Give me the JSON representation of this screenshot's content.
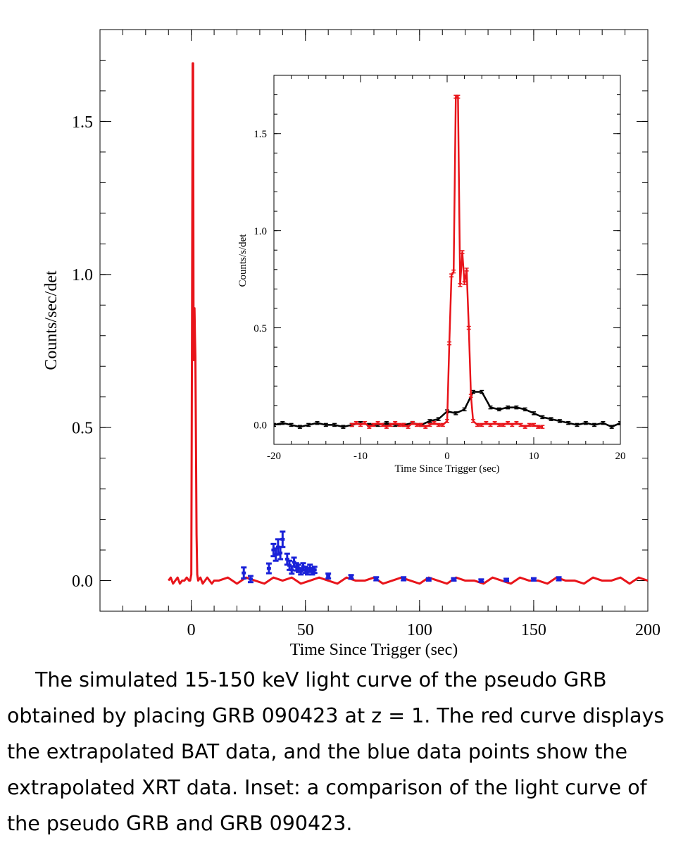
{
  "caption": "The simulated 15-150 keV light curve of the pseudo GRB obtained by placing GRB 090423 at z = 1. The red curve displays the extrapolated BAT data, and the blue data points show the extrapolated XRT data. Inset: a comparison of the light curve of the pseudo GRB and GRB 090423.",
  "colors": {
    "bat": "#e8141a",
    "xrt": "#1a22d8",
    "grb": "#000000"
  },
  "chart_data": [
    {
      "type": "line",
      "xlabel": "Time Since Trigger (sec)",
      "ylabel": "Counts/sec/det",
      "xlim": [
        -40,
        200
      ],
      "ylim": [
        -0.1,
        1.8
      ],
      "xticks": [
        0,
        50,
        100,
        150,
        200
      ],
      "xtick_labels": [
        "0",
        "50",
        "100",
        "150",
        "200"
      ],
      "yticks": [
        0.0,
        0.5,
        1.0,
        1.5
      ],
      "ytick_labels": [
        "0.0",
        "0.5",
        "1.0",
        "1.5"
      ],
      "series": [
        {
          "color": "#e8141a",
          "x": [
            -10,
            -9,
            -8,
            -7,
            -6,
            -5,
            -4,
            -3,
            -2,
            -1,
            -0.5,
            0,
            0.3,
            0.6,
            0.8,
            1.0,
            1.2,
            1.4,
            1.6,
            1.8,
            2.0,
            2.3,
            2.6,
            3,
            4,
            5,
            6,
            7,
            8,
            9,
            10,
            12,
            16,
            20,
            24,
            28,
            32,
            36,
            40,
            44,
            48,
            52,
            56,
            60,
            64,
            68,
            72,
            76,
            80,
            84,
            88,
            92,
            96,
            100,
            104,
            108,
            112,
            116,
            120,
            124,
            128,
            132,
            136,
            140,
            144,
            148,
            152,
            156,
            160,
            164,
            168,
            172,
            176,
            180,
            184,
            188,
            192,
            196,
            200
          ],
          "y": [
            0.0,
            0.01,
            -0.01,
            0.0,
            0.01,
            -0.01,
            0.0,
            0.0,
            0.01,
            0.0,
            0.0,
            0.02,
            0.78,
            1.69,
            1.69,
            0.72,
            0.73,
            0.89,
            0.8,
            0.73,
            0.5,
            0.15,
            0.02,
            0.0,
            0.01,
            -0.01,
            0.0,
            0.01,
            0.0,
            -0.01,
            0.0,
            0.0,
            0.01,
            -0.01,
            0.01,
            0.0,
            -0.01,
            0.01,
            0.0,
            0.01,
            -0.01,
            0.0,
            0.01,
            0.0,
            -0.01,
            0.01,
            0.0,
            0.0,
            0.01,
            -0.01,
            0.0,
            0.01,
            0.0,
            -0.01,
            0.01,
            0.0,
            -0.01,
            0.01,
            0.0,
            0.0,
            -0.01,
            0.01,
            0.0,
            -0.01,
            0.01,
            0.0,
            0.0,
            -0.01,
            0.01,
            0.0,
            0.0,
            -0.01,
            0.01,
            0.0,
            0.0,
            0.01,
            -0.01,
            0.01,
            0.0
          ]
        },
        {
          "color": "#1a22d8",
          "type": "scatter",
          "x": [
            23,
            26,
            34,
            36,
            37,
            38,
            39,
            40,
            42,
            43,
            44,
            45,
            46,
            47,
            48,
            49,
            50,
            51,
            52,
            53,
            54,
            60,
            70,
            81,
            93,
            104,
            115,
            127,
            138,
            150,
            161
          ],
          "y": [
            0.025,
            0.005,
            0.04,
            0.1,
            0.085,
            0.11,
            0.09,
            0.135,
            0.07,
            0.05,
            0.035,
            0.06,
            0.045,
            0.04,
            0.03,
            0.045,
            0.035,
            0.03,
            0.04,
            0.03,
            0.035,
            0.015,
            0.012,
            0.006,
            0.006,
            0.004,
            0.004,
            0.0,
            0.002,
            0.004,
            0.006
          ],
          "err": [
            0.018,
            0.01,
            0.016,
            0.02,
            0.02,
            0.025,
            0.02,
            0.025,
            0.018,
            0.015,
            0.012,
            0.015,
            0.012,
            0.012,
            0.01,
            0.012,
            0.01,
            0.01,
            0.012,
            0.01,
            0.01,
            0.008,
            0.006,
            0.005,
            0.005,
            0.004,
            0.004,
            0.004,
            0.004,
            0.004,
            0.005
          ]
        }
      ]
    },
    {
      "type": "line",
      "xlabel": "Time Since Trigger (sec)",
      "ylabel": "Counts/s/det",
      "xlim": [
        -20,
        20
      ],
      "ylim": [
        -0.1,
        1.8
      ],
      "xticks": [
        -20,
        -10,
        0,
        10,
        20
      ],
      "xtick_labels": [
        "-20",
        "-10",
        "0",
        "10",
        "20"
      ],
      "yticks": [
        0.0,
        0.5,
        1.0,
        1.5
      ],
      "ytick_labels": [
        "0.0",
        "0.5",
        "1.0",
        "1.5"
      ],
      "series": [
        {
          "color": "#000000",
          "x": [
            -20,
            -19,
            -18,
            -17,
            -16,
            -15,
            -14,
            -13,
            -12,
            -11,
            -10,
            -9,
            -8,
            -7,
            -6,
            -5,
            -4,
            -3,
            -2,
            -1,
            0,
            1,
            2,
            3,
            4,
            5,
            6,
            7,
            8,
            9,
            10,
            11,
            12,
            13,
            14,
            15,
            16,
            17,
            18,
            19,
            20
          ],
          "y": [
            0.0,
            0.01,
            0.0,
            -0.01,
            0.0,
            0.01,
            0.0,
            0.0,
            -0.01,
            0.0,
            0.01,
            0.0,
            0.0,
            0.01,
            0.0,
            0.0,
            0.01,
            0.0,
            0.02,
            0.03,
            0.07,
            0.06,
            0.08,
            0.17,
            0.17,
            0.09,
            0.08,
            0.09,
            0.09,
            0.08,
            0.06,
            0.04,
            0.03,
            0.02,
            0.01,
            0.0,
            0.01,
            0.0,
            0.01,
            -0.01,
            0.01
          ]
        },
        {
          "color": "#e8141a",
          "x": [
            -11,
            -10.5,
            -10,
            -9.5,
            -9,
            -8.5,
            -8,
            -7.5,
            -7,
            -6.5,
            -6,
            -5.5,
            -5,
            -4.5,
            -4,
            -3.5,
            -3,
            -2.5,
            -2,
            -1.5,
            -1,
            -0.5,
            0,
            0.25,
            0.5,
            0.75,
            1.0,
            1.25,
            1.5,
            1.75,
            2.0,
            2.25,
            2.5,
            2.75,
            3,
            3.5,
            4,
            4.5,
            5,
            5.5,
            6,
            6.5,
            7,
            7.5,
            8,
            8.5,
            9,
            9.5,
            10,
            10.5,
            11
          ],
          "y": [
            0.0,
            0.01,
            0.0,
            0.01,
            -0.01,
            0.0,
            0.01,
            0.0,
            -0.01,
            0.0,
            0.01,
            0.0,
            0.0,
            -0.01,
            0.01,
            0.0,
            0.0,
            -0.01,
            0.0,
            0.01,
            0.0,
            0.0,
            0.02,
            0.42,
            0.77,
            0.79,
            1.69,
            1.69,
            0.72,
            0.89,
            0.73,
            0.8,
            0.5,
            0.15,
            0.02,
            0.0,
            0.0,
            0.01,
            0.0,
            0.01,
            0.0,
            0.0,
            0.01,
            0.0,
            0.01,
            0.0,
            -0.01,
            0.0,
            0.0,
            -0.01,
            -0.01
          ]
        }
      ]
    }
  ]
}
